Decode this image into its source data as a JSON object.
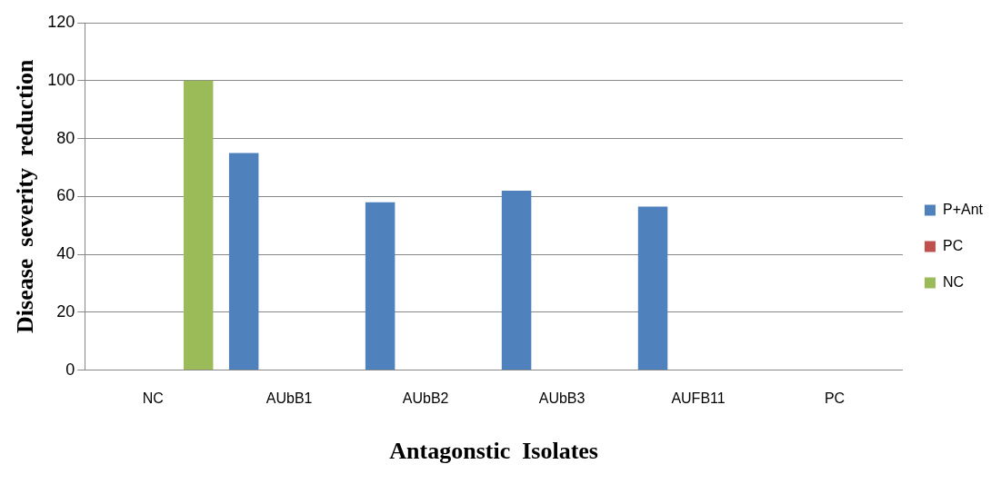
{
  "chart_data": {
    "type": "bar",
    "xlabel": "Antagonstic  Isolates",
    "ylabel": "Disease  severity  reduction",
    "categories": [
      "NC",
      "AUbB1",
      "AUbB2",
      "AUbB3",
      "AUFB11",
      "PC"
    ],
    "series": [
      {
        "name": "P+Ant",
        "color": "#4f81bd",
        "values": [
          null,
          75,
          58,
          62,
          56.5,
          null
        ]
      },
      {
        "name": "PC",
        "color": "#c0504d",
        "values": [
          null,
          null,
          null,
          null,
          null,
          0
        ]
      },
      {
        "name": "NC",
        "color": "#9bbb59",
        "values": [
          100,
          null,
          null,
          null,
          null,
          null
        ]
      }
    ],
    "ylim": [
      0,
      120
    ],
    "yticks": [
      0,
      20,
      40,
      60,
      80,
      100,
      120
    ],
    "grid": "y",
    "legend": "right"
  }
}
